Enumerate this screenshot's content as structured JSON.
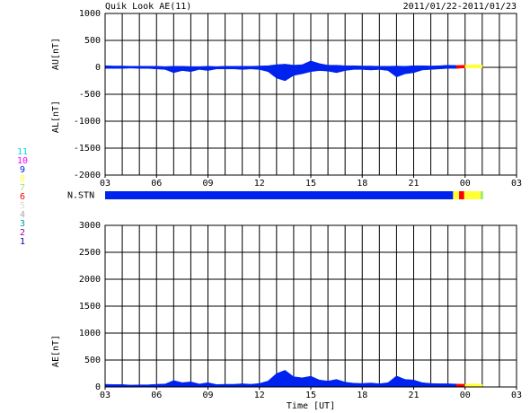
{
  "header": {
    "title": "Quik Look AE(11)",
    "date_range": "2011/01/22-2011/01/23"
  },
  "chart_data": [
    {
      "type": "area",
      "ylabel_upper": "AU[nT]",
      "ylabel_lower": "AL[nT]",
      "color": "#0000ff",
      "x": [
        3,
        3.5,
        4,
        4.5,
        5,
        5.5,
        6,
        6.5,
        7,
        7.5,
        8,
        8.5,
        9,
        9.5,
        10,
        10.5,
        11,
        11.5,
        12,
        12.5,
        13,
        13.5,
        14,
        14.5,
        15,
        15.5,
        16,
        16.5,
        17,
        17.5,
        18,
        18.5,
        19,
        19.5,
        20,
        20.5,
        21,
        21.5,
        22,
        22.5,
        23,
        23.5,
        24,
        24.5,
        25
      ],
      "series": [
        {
          "values": [
            30,
            25,
            25,
            20,
            20,
            20,
            20,
            15,
            20,
            20,
            15,
            15,
            20,
            15,
            20,
            20,
            20,
            20,
            25,
            30,
            50,
            60,
            40,
            50,
            120,
            70,
            40,
            40,
            30,
            30,
            25,
            25,
            20,
            20,
            25,
            20,
            30,
            30,
            25,
            30,
            40,
            35,
            40,
            50,
            40
          ]
        },
        {
          "values": [
            -20,
            -20,
            -20,
            -15,
            -20,
            -20,
            -30,
            -40,
            -100,
            -60,
            -80,
            -40,
            -60,
            -30,
            -30,
            -30,
            -40,
            -30,
            -40,
            -80,
            -200,
            -250,
            -150,
            -120,
            -80,
            -60,
            -70,
            -100,
            -60,
            -40,
            -40,
            -50,
            -40,
            -60,
            -180,
            -120,
            -100,
            -50,
            -40,
            -30,
            -20,
            -20,
            -10,
            -10,
            -10
          ]
        }
      ],
      "xlim": [
        3,
        27
      ],
      "xticks": [
        {
          "value": 3,
          "label": "03"
        },
        {
          "value": 6,
          "label": "06"
        },
        {
          "value": 9,
          "label": "09"
        },
        12,
        15,
        18,
        21,
        {
          "value": 24,
          "label": "00"
        },
        {
          "value": 27,
          "label": "03"
        }
      ],
      "xgrid": [
        4,
        5,
        6,
        7,
        8,
        9,
        10,
        11,
        12,
        13,
        14,
        15,
        16,
        17,
        18,
        19,
        20,
        21,
        22,
        23,
        24,
        25,
        26
      ],
      "ylim": [
        -2000,
        1000
      ],
      "yticks": [
        1000,
        500,
        0,
        -500,
        -1000,
        -1500,
        -2000
      ]
    },
    {
      "type": "stations",
      "label": "N.STN",
      "segments": [
        {
          "start": 3,
          "end": 23.3,
          "n": 9
        },
        {
          "start": 23.3,
          "end": 23.65,
          "n": 8
        },
        {
          "start": 23.65,
          "end": 23.95,
          "n": 6
        },
        {
          "start": 23.95,
          "end": 24.9,
          "n": 8
        },
        {
          "start": 24.9,
          "end": 25.05,
          "n": 7
        }
      ],
      "legend": [
        {
          "n": 11,
          "color": "#00e0e0"
        },
        {
          "n": 10,
          "color": "#ff00ff"
        },
        {
          "n": 9,
          "color": "#0022ee"
        },
        {
          "n": 8,
          "color": "#ffff33"
        },
        {
          "n": 7,
          "color": "#99ee66"
        },
        {
          "n": 6,
          "color": "#ff0000"
        },
        {
          "n": 5,
          "color": "#d8d8d8"
        },
        {
          "n": 4,
          "color": "#a8a8a8"
        },
        {
          "n": 3,
          "color": "#00a0a0"
        },
        {
          "n": 2,
          "color": "#a000a0"
        },
        {
          "n": 1,
          "color": "#0000a0"
        }
      ]
    },
    {
      "type": "area",
      "ylabel": "AE[nT]",
      "xlabel": "Time [UT]",
      "color": "#0000ff",
      "x": [
        3,
        3.5,
        4,
        4.5,
        5,
        5.5,
        6,
        6.5,
        7,
        7.5,
        8,
        8.5,
        9,
        9.5,
        10,
        10.5,
        11,
        11.5,
        12,
        12.5,
        13,
        13.5,
        14,
        14.5,
        15,
        15.5,
        16,
        16.5,
        17,
        17.5,
        18,
        18.5,
        19,
        19.5,
        20,
        20.5,
        21,
        21.5,
        22,
        22.5,
        23,
        23.5,
        24,
        24.5,
        25
      ],
      "series": [
        {
          "values": [
            50,
            45,
            45,
            35,
            40,
            40,
            50,
            55,
            120,
            80,
            95,
            55,
            80,
            45,
            50,
            50,
            60,
            50,
            65,
            110,
            250,
            310,
            190,
            170,
            200,
            130,
            110,
            140,
            90,
            70,
            65,
            75,
            60,
            80,
            205,
            140,
            130,
            80,
            65,
            60,
            60,
            55,
            50,
            60,
            50
          ]
        }
      ],
      "xlim": [
        3,
        27
      ],
      "xticks": [
        {
          "value": 3,
          "label": "03"
        },
        {
          "value": 6,
          "label": "06"
        },
        {
          "value": 9,
          "label": "09"
        },
        12,
        15,
        18,
        21,
        {
          "value": 24,
          "label": "00"
        },
        {
          "value": 27,
          "label": "03"
        }
      ],
      "xgrid": [
        4,
        5,
        6,
        7,
        8,
        9,
        10,
        11,
        12,
        13,
        14,
        15,
        16,
        17,
        18,
        19,
        20,
        21,
        22,
        23,
        24,
        25,
        26
      ],
      "ylim": [
        0,
        3000
      ],
      "yticks": [
        0,
        500,
        1000,
        1500,
        2000,
        2500,
        3000
      ]
    }
  ]
}
